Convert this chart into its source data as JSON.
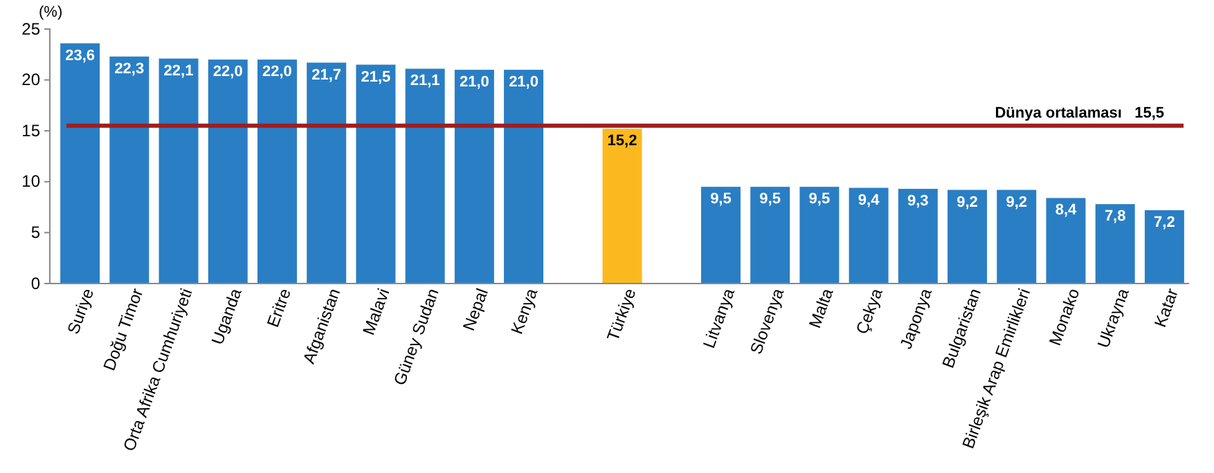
{
  "chart_data": {
    "type": "bar",
    "ylabel": "(%)",
    "categories": [
      "Suriye",
      "Doğu Timor",
      "Orta Afrika Cumhuriyeti",
      "Uganda",
      "Eritre",
      "Afganistan",
      "Malavi",
      "Güney Sudan",
      "Nepal",
      "Kenya",
      null,
      "Türkiye",
      null,
      "Litvanya",
      "Slovenya",
      "Malta",
      "Çekya",
      "Japonya",
      "Bulgaristan",
      "Birleşik Arap Emirlikleri",
      "Monako",
      "Ukrayna",
      "Katar"
    ],
    "values": [
      23.6,
      22.3,
      22.1,
      22.0,
      22.0,
      21.7,
      21.5,
      21.1,
      21.0,
      21.0,
      null,
      15.2,
      null,
      9.5,
      9.5,
      9.5,
      9.4,
      9.3,
      9.2,
      9.2,
      8.4,
      7.8,
      7.2
    ],
    "value_labels": [
      "23,6",
      "22,3",
      "22,1",
      "22,0",
      "22,0",
      "21,7",
      "21,5",
      "21,1",
      "21,0",
      "21,0",
      null,
      "15,2",
      null,
      "9,5",
      "9,5",
      "9,5",
      "9,4",
      "9,3",
      "9,2",
      "9,2",
      "8,4",
      "7,8",
      "7,2"
    ],
    "colors": [
      "#2a7ec4",
      "#2a7ec4",
      "#2a7ec4",
      "#2a7ec4",
      "#2a7ec4",
      "#2a7ec4",
      "#2a7ec4",
      "#2a7ec4",
      "#2a7ec4",
      "#2a7ec4",
      null,
      "#fbb91f",
      null,
      "#2a7ec4",
      "#2a7ec4",
      "#2a7ec4",
      "#2a7ec4",
      "#2a7ec4",
      "#2a7ec4",
      "#2a7ec4",
      "#2a7ec4",
      "#2a7ec4",
      "#2a7ec4"
    ],
    "ylim": [
      0,
      25
    ],
    "yticks": [
      0,
      5,
      10,
      15,
      20,
      25
    ],
    "grid": false,
    "ref_lines": [
      {
        "axis": "y",
        "value": 15.5,
        "label": "Dünya ortalaması   15,5",
        "color": "#a11d1d"
      }
    ]
  }
}
